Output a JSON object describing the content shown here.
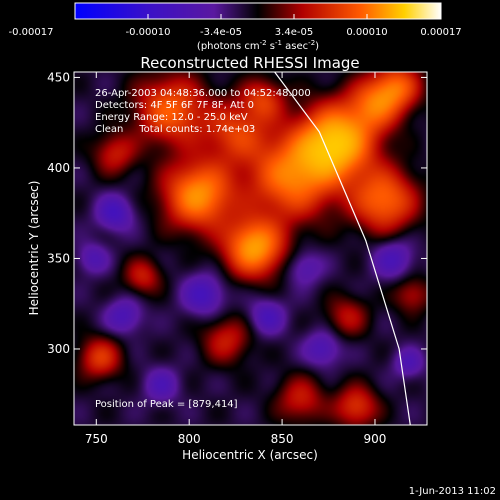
{
  "colorbar": {
    "ticks": [
      "-0.00017",
      "-0.00010",
      "-3.4e-05",
      "3.4e-05",
      "0.00010",
      "0.00017"
    ],
    "unit_base": "(photons cm",
    "unit_sup1": "-2",
    "unit_s": " s",
    "unit_sup2": "-1",
    "unit_asec": " asec",
    "unit_sup3": "-2",
    "unit_end": ")"
  },
  "footer": {
    "date": "1-Jun-2013 11:02"
  },
  "chart_data": {
    "type": "heatmap",
    "title": "Reconstructed RHESSI Image",
    "xlabel": "Heliocentric X (arcsec)",
    "ylabel": "Heliocentric Y (arcsec)",
    "xlim": [
      738,
      928
    ],
    "ylim": [
      258,
      453
    ],
    "xticks": [
      "750",
      "800",
      "850",
      "900"
    ],
    "yticks": [
      "300",
      "350",
      "400",
      "450"
    ],
    "xtick_values": [
      750,
      800,
      850,
      900
    ],
    "ytick_values": [
      300,
      350,
      400,
      450
    ],
    "colormap": "idl-red-temperature-blue",
    "clim": [
      -0.00017,
      0.00017
    ],
    "annotations": [
      "26-Apr-2003 04:48:36.000 to 04:52:48.000",
      "Detectors: 4F 5F 6F 7F 8F, Att 0",
      "Energy Range: 12.0 - 25.0 keV",
      "Clean     Total counts: 1.74e+03"
    ],
    "peak_label": "Position of Peak = [879,414]",
    "peak": [
      879,
      414
    ],
    "limb_curve": [
      [
        846,
        453
      ],
      [
        870,
        420
      ],
      [
        895,
        360
      ],
      [
        913,
        300
      ],
      [
        919,
        258
      ]
    ],
    "sources": [
      {
        "x": 879,
        "y": 414,
        "amp": 1.0,
        "sigma": 14
      },
      {
        "x": 835,
        "y": 356,
        "amp": 0.85,
        "sigma": 11
      },
      {
        "x": 805,
        "y": 385,
        "amp": 0.8,
        "sigma": 13
      },
      {
        "x": 855,
        "y": 395,
        "amp": 0.7,
        "sigma": 16
      },
      {
        "x": 905,
        "y": 382,
        "amp": 0.65,
        "sigma": 12
      },
      {
        "x": 790,
        "y": 432,
        "amp": 0.6,
        "sigma": 13
      },
      {
        "x": 825,
        "y": 420,
        "amp": 0.45,
        "sigma": 12
      },
      {
        "x": 900,
        "y": 435,
        "amp": 0.55,
        "sigma": 10
      },
      {
        "x": 760,
        "y": 408,
        "amp": 0.35,
        "sigma": 8
      },
      {
        "x": 775,
        "y": 340,
        "amp": 0.35,
        "sigma": 7
      },
      {
        "x": 752,
        "y": 295,
        "amp": 0.45,
        "sigma": 8
      },
      {
        "x": 820,
        "y": 305,
        "amp": 0.35,
        "sigma": 9
      },
      {
        "x": 860,
        "y": 272,
        "amp": 0.35,
        "sigma": 9
      },
      {
        "x": 890,
        "y": 268,
        "amp": 0.45,
        "sigma": 8
      },
      {
        "x": 885,
        "y": 318,
        "amp": 0.3,
        "sigma": 8
      },
      {
        "x": 920,
        "y": 330,
        "amp": 0.3,
        "sigma": 7
      },
      {
        "x": 912,
        "y": 445,
        "amp": 0.55,
        "sigma": 9
      },
      {
        "x": 840,
        "y": 438,
        "amp": 0.4,
        "sigma": 8
      }
    ],
    "negative_sources": [
      {
        "x": 760,
        "y": 375,
        "amp": 0.35,
        "sigma": 7
      },
      {
        "x": 808,
        "y": 330,
        "amp": 0.35,
        "sigma": 8
      },
      {
        "x": 765,
        "y": 318,
        "amp": 0.3,
        "sigma": 7
      },
      {
        "x": 842,
        "y": 318,
        "amp": 0.3,
        "sigma": 7
      },
      {
        "x": 872,
        "y": 300,
        "amp": 0.3,
        "sigma": 7
      },
      {
        "x": 910,
        "y": 350,
        "amp": 0.3,
        "sigma": 8
      },
      {
        "x": 918,
        "y": 292,
        "amp": 0.25,
        "sigma": 6
      },
      {
        "x": 862,
        "y": 345,
        "amp": 0.25,
        "sigma": 7
      },
      {
        "x": 785,
        "y": 280,
        "amp": 0.25,
        "sigma": 7
      },
      {
        "x": 748,
        "y": 350,
        "amp": 0.25,
        "sigma": 6
      }
    ]
  }
}
